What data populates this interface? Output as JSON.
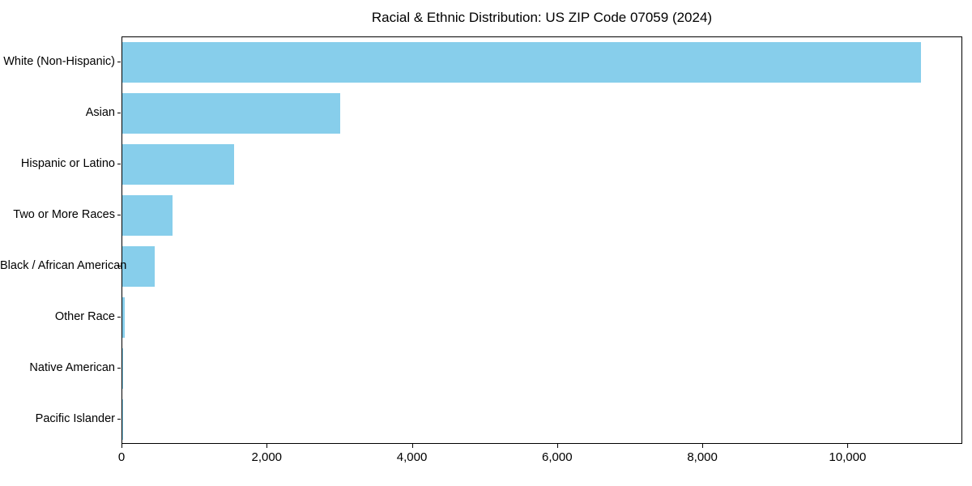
{
  "chart_data": {
    "type": "bar",
    "orientation": "horizontal",
    "title": "Racial & Ethnic Distribution: US ZIP Code 07059 (2024)",
    "categories": [
      "White (Non-Hispanic)",
      "Asian",
      "Hispanic or Latino",
      "Two or More Races",
      "Black / African American",
      "Other Race",
      "Native American",
      "Pacific Islander"
    ],
    "values": [
      11000,
      3000,
      1540,
      690,
      450,
      35,
      8,
      2
    ],
    "xlabel": "",
    "ylabel": "",
    "xlim": [
      0,
      11580
    ],
    "x_ticks": [
      0,
      2000,
      4000,
      6000,
      8000,
      10000
    ],
    "x_tick_labels": [
      "0",
      "2,000",
      "4,000",
      "6,000",
      "8,000",
      "10,000"
    ],
    "bar_color": "#87CEEB",
    "grid": false,
    "legend": "none"
  }
}
